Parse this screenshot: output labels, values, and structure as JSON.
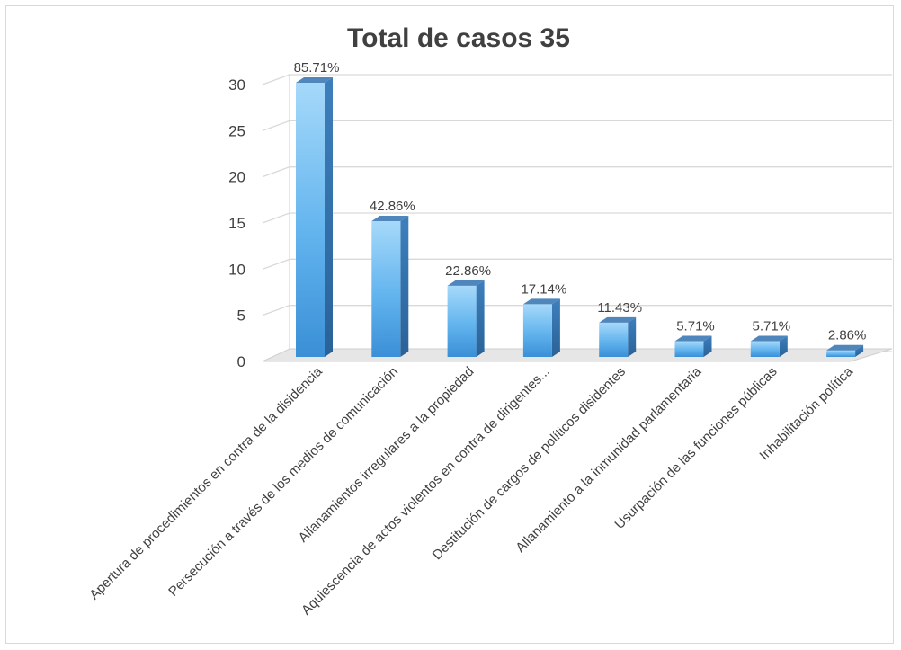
{
  "chart_data": {
    "type": "bar",
    "title": "Total de casos 35",
    "categories": [
      "Apertura de procedimientos en contra de la disidencia",
      "Persecución a través de los medios de comunicación",
      "Allanamientos irregulares a la propiedad",
      "Aquiescencia de actos violentos en contra de dirigentes...",
      "Destitución de cargos de políticos disidentes",
      "Allanamiento a la inmunidad parlamentaria",
      "Usurpación de las funciones públicas",
      "Inhabilitación política"
    ],
    "values": [
      30,
      15,
      8,
      6,
      4,
      2,
      2,
      1
    ],
    "data_labels": [
      "85.71%",
      "42.86%",
      "22.86%",
      "17.14%",
      "11.43%",
      "5.71%",
      "5.71%",
      "2.86%"
    ],
    "ylim": [
      0,
      30
    ],
    "yticks": [
      0,
      5,
      10,
      15,
      20,
      25,
      30
    ],
    "xlabel": "",
    "ylabel": "",
    "grid": true,
    "style": "3d-column",
    "colors": {
      "bar_light": "#9ed3f7",
      "bar_mid": "#5aaeea",
      "bar_dark": "#3a8fd6",
      "bar_side": "#2f6fa8",
      "bar_top": "#4a7fb4",
      "grid": "#d9d9d9",
      "text": "#404040"
    }
  }
}
